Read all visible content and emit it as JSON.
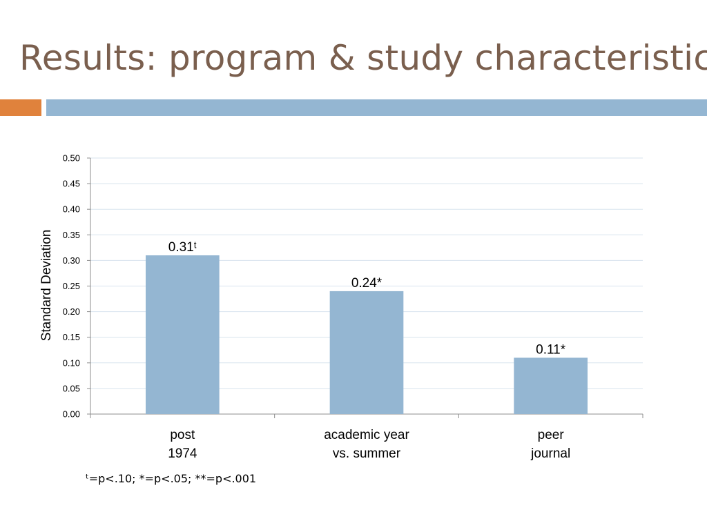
{
  "slide": {
    "title": "Results: program & study characteristics",
    "footnote": "ᵗ=p<.10; *=p<.05; **=p<.001"
  },
  "colors": {
    "title": "#7a5f4e",
    "accent_orange": "#e0823c",
    "accent_blue": "#94b6d2",
    "bar": "#94b6d2",
    "grid": "#d7e3ee",
    "axis": "#8c8c8c"
  },
  "chart_data": {
    "type": "bar",
    "categories": [
      [
        "post",
        "1974"
      ],
      [
        "academic year",
        "vs. summer"
      ],
      [
        "peer",
        "journal"
      ]
    ],
    "values": [
      0.31,
      0.24,
      0.11
    ],
    "data_labels": [
      "0.31ᵗ",
      "0.24*",
      "0.11*"
    ],
    "title": "",
    "xlabel": "",
    "ylabel": "Standard Deviation",
    "ylim": [
      0,
      0.5
    ],
    "yticks": [
      "0.00",
      "0.05",
      "0.10",
      "0.15",
      "0.20",
      "0.25",
      "0.30",
      "0.35",
      "0.40",
      "0.45",
      "0.50"
    ],
    "grid": true,
    "legend": "none"
  }
}
